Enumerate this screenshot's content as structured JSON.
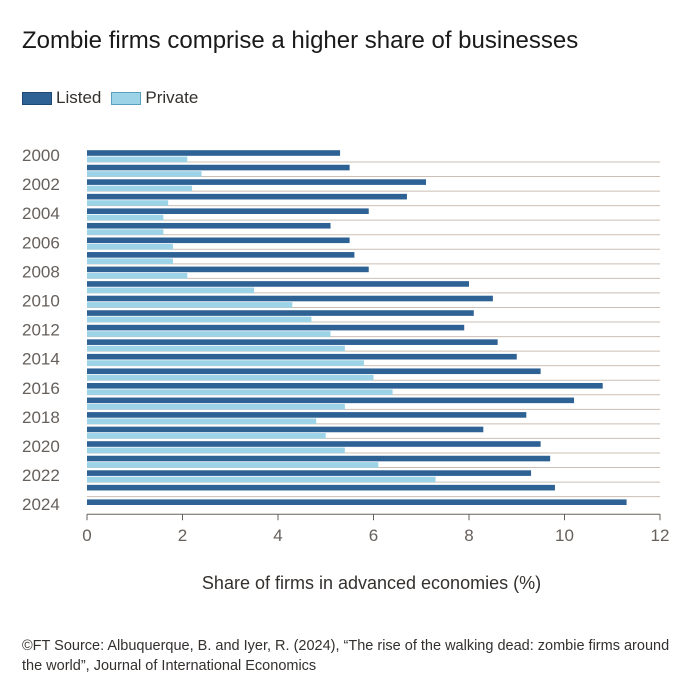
{
  "title": "Zombie firms comprise a higher share of businesses",
  "legend": [
    {
      "label": "Listed",
      "color": "#2e6194"
    },
    {
      "label": "Private",
      "color": "#9dd3e6"
    }
  ],
  "source_text": "©FT Source: Albuquerque, B. and Iyer, R. (2024), “The rise of the walking dead: zombie firms around the world”, Journal of International Economics",
  "colors": {
    "listed": "#2e6194",
    "private": "#9dd3e6",
    "grid": "#cbbfb5",
    "axis": "#66605c"
  },
  "chart_data": {
    "type": "bar",
    "orientation": "horizontal",
    "categories": [
      2000,
      2001,
      2002,
      2003,
      2004,
      2005,
      2006,
      2007,
      2008,
      2009,
      2010,
      2011,
      2012,
      2013,
      2014,
      2015,
      2016,
      2017,
      2018,
      2019,
      2020,
      2021,
      2022,
      2023,
      2024
    ],
    "category_tick_labels": [
      "2000",
      "2002",
      "2004",
      "2006",
      "2008",
      "2010",
      "2012",
      "2014",
      "2016",
      "2018",
      "2020",
      "2022",
      "2024"
    ],
    "series": [
      {
        "name": "Listed",
        "values": [
          5.3,
          5.5,
          7.1,
          6.7,
          5.9,
          5.1,
          5.5,
          5.6,
          5.9,
          8.0,
          8.5,
          8.1,
          7.9,
          8.6,
          9.0,
          9.5,
          10.8,
          10.2,
          9.2,
          8.3,
          9.5,
          9.7,
          9.3,
          9.8,
          11.3
        ]
      },
      {
        "name": "Private",
        "values": [
          2.1,
          2.4,
          2.2,
          1.7,
          1.6,
          1.6,
          1.8,
          1.8,
          2.1,
          3.5,
          4.3,
          4.7,
          5.1,
          5.4,
          5.8,
          6.0,
          6.4,
          5.4,
          4.8,
          5.0,
          5.4,
          6.1,
          7.3,
          null,
          null
        ]
      }
    ],
    "title": "Zombie firms comprise a higher share of businesses",
    "xlabel": "Share of firms in advanced economies (%)",
    "ylabel": "",
    "xlim": [
      0,
      12
    ],
    "x_ticks": [
      0,
      2,
      4,
      6,
      8,
      10,
      12
    ],
    "grid": true,
    "legend_position": "top-left"
  }
}
